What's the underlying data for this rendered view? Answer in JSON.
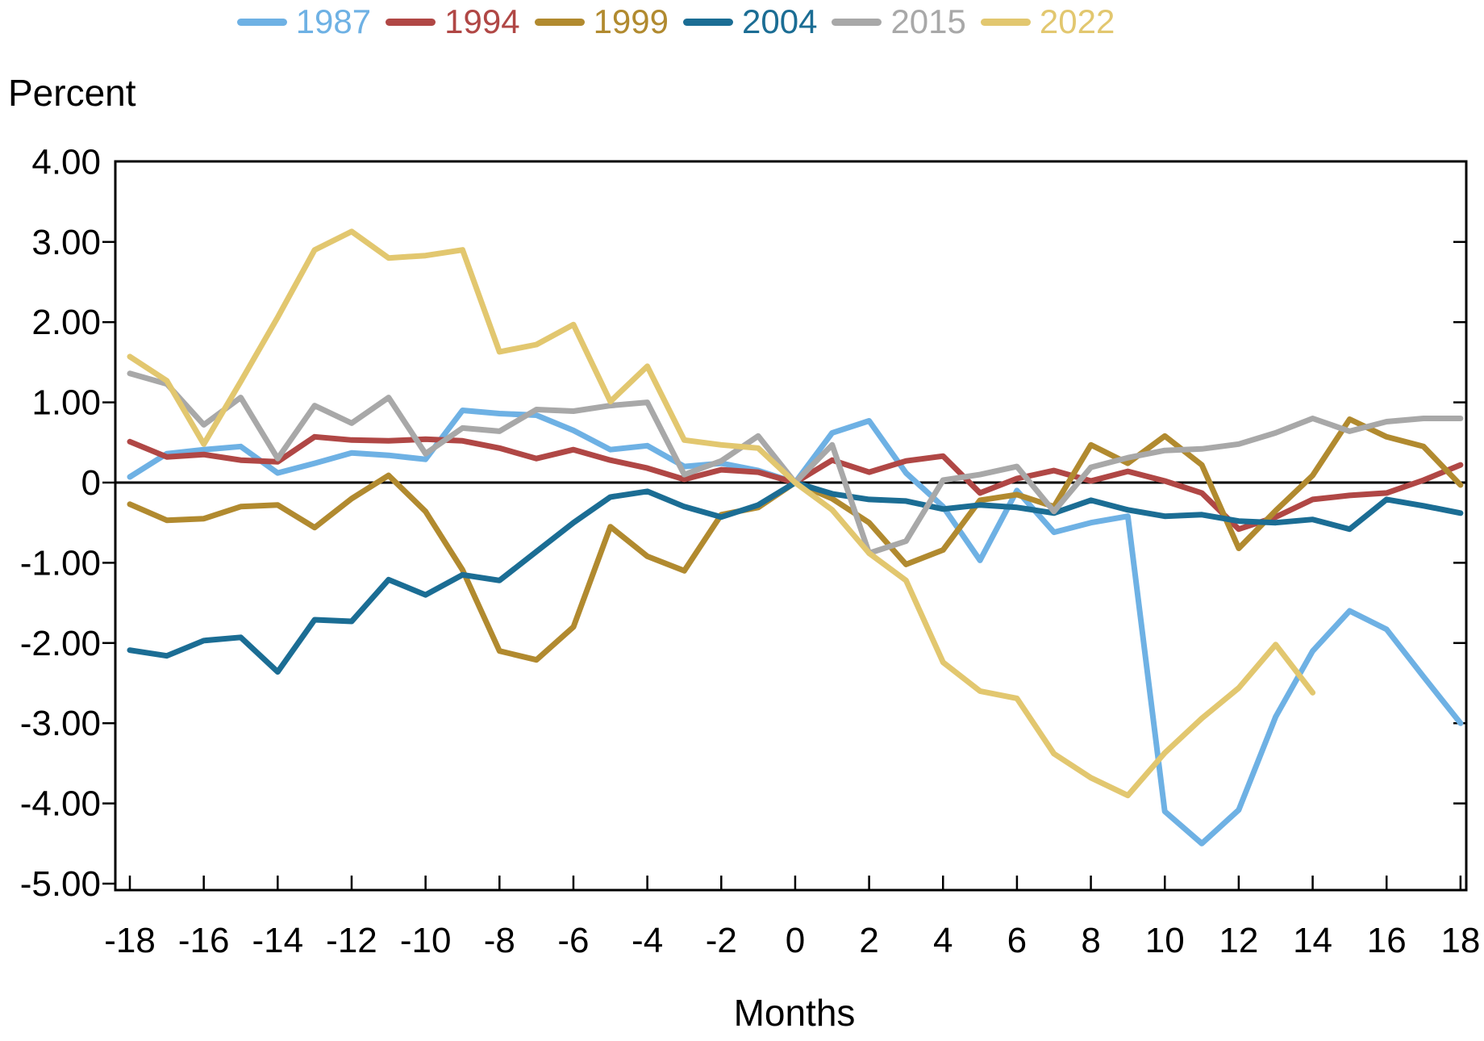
{
  "legend": {
    "items": [
      {
        "label": "1987",
        "color": "#6EB1E4"
      },
      {
        "label": "1994",
        "color": "#B04745"
      },
      {
        "label": "1999",
        "color": "#B18A2F"
      },
      {
        "label": "2004",
        "color": "#1B6D94"
      },
      {
        "label": "2015",
        "color": "#A8A8A8"
      },
      {
        "label": "2022",
        "color": "#E2C76F"
      }
    ]
  },
  "y_axis": {
    "title": "Percent",
    "tick_labels": [
      "4.00",
      "3.00",
      "2.00",
      "1.00",
      "0",
      "-1.00",
      "-2.00",
      "-3.00",
      "-4.00",
      "-5.00"
    ],
    "tick_values": [
      4,
      3,
      2,
      1,
      0,
      -1,
      -2,
      -3,
      -4,
      -5
    ]
  },
  "x_axis": {
    "title": "Months",
    "tick_values": [
      -18,
      -16,
      -14,
      -12,
      -10,
      -8,
      -6,
      -4,
      -2,
      0,
      2,
      4,
      6,
      8,
      10,
      12,
      14,
      16,
      18
    ]
  },
  "chart_data": {
    "type": "line",
    "title": "",
    "xlabel": "Months",
    "ylabel": "Percent",
    "xlim": [
      -18,
      18
    ],
    "ylim": [
      -5,
      4
    ],
    "grid": false,
    "zero_line": true,
    "legend_position": "top",
    "x": [
      -18,
      -17,
      -16,
      -15,
      -14,
      -13,
      -12,
      -11,
      -10,
      -9,
      -8,
      -7,
      -6,
      -5,
      -4,
      -3,
      -2,
      -1,
      0,
      1,
      2,
      3,
      4,
      5,
      6,
      7,
      8,
      9,
      10,
      11,
      12,
      13,
      14,
      15,
      16,
      17,
      18
    ],
    "series": [
      {
        "name": "1987",
        "color": "#6EB1E4",
        "values": [
          0.07,
          0.36,
          0.41,
          0.45,
          0.12,
          0.24,
          0.37,
          0.34,
          0.29,
          0.9,
          0.86,
          0.84,
          0.65,
          0.41,
          0.46,
          0.2,
          0.24,
          0.15,
          0.0,
          0.62,
          0.77,
          0.12,
          -0.3,
          -0.97,
          -0.1,
          -0.62,
          -0.5,
          -0.42,
          -4.1,
          -4.5,
          -4.08,
          -2.92,
          -2.1,
          -1.6,
          -1.83,
          -2.42,
          -3.0
        ]
      },
      {
        "name": "1994",
        "color": "#B04745",
        "values": [
          0.51,
          0.32,
          0.35,
          0.28,
          0.26,
          0.57,
          0.53,
          0.52,
          0.54,
          0.52,
          0.43,
          0.3,
          0.41,
          0.28,
          0.18,
          0.04,
          0.16,
          0.13,
          0.0,
          0.28,
          0.13,
          0.27,
          0.33,
          -0.13,
          0.05,
          0.15,
          0.02,
          0.14,
          0.02,
          -0.13,
          -0.58,
          -0.43,
          -0.21,
          -0.16,
          -0.13,
          0.03,
          0.22
        ]
      },
      {
        "name": "1999",
        "color": "#B18A2F",
        "values": [
          -0.27,
          -0.47,
          -0.45,
          -0.3,
          -0.28,
          -0.56,
          -0.2,
          0.09,
          -0.36,
          -1.09,
          -2.1,
          -2.21,
          -1.8,
          -0.55,
          -0.92,
          -1.1,
          -0.4,
          -0.31,
          0.0,
          -0.2,
          -0.5,
          -1.02,
          -0.84,
          -0.22,
          -0.15,
          -0.3,
          0.47,
          0.24,
          0.58,
          0.22,
          -0.82,
          -0.35,
          0.09,
          0.79,
          0.57,
          0.45,
          -0.03
        ]
      },
      {
        "name": "2004",
        "color": "#1B6D94",
        "values": [
          -2.09,
          -2.16,
          -1.97,
          -1.93,
          -2.36,
          -1.71,
          -1.73,
          -1.21,
          -1.4,
          -1.15,
          -1.22,
          -0.86,
          -0.5,
          -0.18,
          -0.11,
          -0.3,
          -0.43,
          -0.28,
          0.0,
          -0.14,
          -0.21,
          -0.23,
          -0.33,
          -0.28,
          -0.31,
          -0.38,
          -0.22,
          -0.34,
          -0.42,
          -0.4,
          -0.48,
          -0.5,
          -0.46,
          -0.58,
          -0.21,
          -0.29,
          -0.38
        ]
      },
      {
        "name": "2015",
        "color": "#A8A8A8",
        "values": [
          1.36,
          1.23,
          0.72,
          1.06,
          0.3,
          0.96,
          0.74,
          1.06,
          0.36,
          0.68,
          0.64,
          0.91,
          0.89,
          0.96,
          1.0,
          0.1,
          0.27,
          0.58,
          0.0,
          0.47,
          -0.88,
          -0.73,
          0.03,
          0.1,
          0.2,
          -0.36,
          0.19,
          0.31,
          0.4,
          0.42,
          0.48,
          0.62,
          0.8,
          0.64,
          0.76,
          0.8,
          0.8
        ]
      },
      {
        "name": "2022",
        "color": "#E2C76F",
        "values": [
          1.57,
          1.27,
          0.48,
          1.26,
          2.06,
          2.9,
          3.13,
          2.8,
          2.83,
          2.9,
          1.63,
          1.72,
          1.97,
          1.01,
          1.45,
          0.53,
          0.47,
          0.43,
          0.0,
          -0.34,
          -0.88,
          -1.22,
          -2.24,
          -2.6,
          -2.69,
          -3.38,
          -3.68,
          -3.9,
          -3.37,
          -2.94,
          -2.56,
          -2.02,
          -2.62,
          null,
          null,
          null,
          null
        ]
      }
    ]
  }
}
